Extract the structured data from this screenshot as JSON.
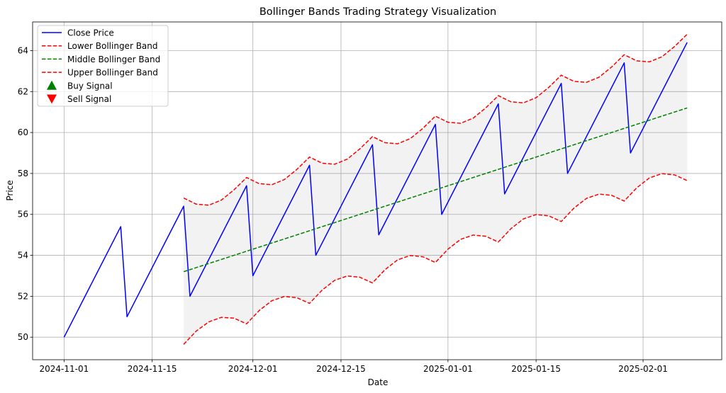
{
  "chart_data": {
    "type": "line",
    "title": "Bollinger Bands Trading Strategy Visualization",
    "xlabel": "Date",
    "ylabel": "Price",
    "x_start": "2024-11-01",
    "ylim": [
      48.9,
      65.4
    ],
    "yticks": [
      50,
      52,
      54,
      56,
      58,
      60,
      62,
      64
    ],
    "xticks": [
      "2024-11-01",
      "2024-11-15",
      "2024-12-01",
      "2024-12-15",
      "2025-01-01",
      "2025-01-15",
      "2025-02-01"
    ],
    "xlim_days": [
      -5.0,
      104.5
    ],
    "grid": true,
    "legend_position": "top-left",
    "series": [
      {
        "name": "Close Price",
        "color": "#0000ff",
        "style": "solid",
        "x_days": [
          0,
          9,
          10,
          19,
          20,
          29,
          30,
          39,
          40,
          49,
          50,
          59,
          60,
          69,
          70,
          79,
          80,
          89,
          90,
          99
        ],
        "values": [
          50,
          55.4,
          51,
          56.4,
          52,
          57.4,
          53,
          58.4,
          54,
          59.4,
          55,
          60.4,
          56,
          61.4,
          57,
          62.4,
          58,
          63.4,
          59,
          64.4
        ]
      },
      {
        "name": "Lower Bollinger Band",
        "color": "#ff0000",
        "style": "dashed",
        "x_days": [
          19,
          21,
          23,
          25,
          27,
          29,
          31,
          33,
          35,
          37,
          39,
          41,
          43,
          45,
          47,
          49,
          51,
          53,
          55,
          57,
          59,
          61,
          63,
          65,
          67,
          69,
          71,
          73,
          75,
          77,
          79,
          81,
          83,
          85,
          87,
          89,
          91,
          93,
          95,
          97,
          99
        ],
        "values": [
          49.65,
          50.3,
          50.75,
          50.97,
          50.93,
          50.65,
          51.3,
          51.78,
          51.99,
          51.93,
          51.65,
          52.3,
          52.78,
          52.99,
          52.93,
          52.65,
          53.3,
          53.78,
          53.99,
          53.93,
          53.65,
          54.3,
          54.78,
          54.99,
          54.93,
          54.65,
          55.3,
          55.78,
          55.99,
          55.93,
          55.65,
          56.3,
          56.78,
          56.99,
          56.93,
          56.65,
          57.3,
          57.78,
          57.99,
          57.93,
          57.65
        ]
      },
      {
        "name": "Middle Bollinger Band",
        "color": "#008000",
        "style": "dashed",
        "x_days": [
          19,
          99
        ],
        "values": [
          53.2,
          61.2
        ]
      },
      {
        "name": "Upper Bollinger Band",
        "color": "#ff0000",
        "style": "dashed",
        "x_days": [
          19,
          21,
          23,
          25,
          27,
          29,
          31,
          33,
          35,
          37,
          39,
          41,
          43,
          45,
          47,
          49,
          51,
          53,
          55,
          57,
          59,
          61,
          63,
          65,
          67,
          69,
          71,
          73,
          75,
          77,
          79,
          81,
          83,
          85,
          87,
          89,
          91,
          93,
          95,
          97,
          99
        ],
        "values": [
          56.8,
          56.5,
          56.45,
          56.7,
          57.2,
          57.8,
          57.5,
          57.45,
          57.7,
          58.2,
          58.8,
          58.5,
          58.45,
          58.7,
          59.2,
          59.8,
          59.5,
          59.45,
          59.7,
          60.2,
          60.8,
          60.5,
          60.45,
          60.7,
          61.2,
          61.8,
          61.5,
          61.45,
          61.7,
          62.2,
          62.8,
          62.5,
          62.45,
          62.7,
          63.2,
          63.8,
          63.5,
          63.45,
          63.7,
          64.2,
          64.8
        ]
      },
      {
        "name": "Buy Signal",
        "color": "#008000",
        "style": "marker-up",
        "x_days": [],
        "values": []
      },
      {
        "name": "Sell Signal",
        "color": "#ff0000",
        "style": "marker-down",
        "x_days": [],
        "values": []
      }
    ]
  }
}
